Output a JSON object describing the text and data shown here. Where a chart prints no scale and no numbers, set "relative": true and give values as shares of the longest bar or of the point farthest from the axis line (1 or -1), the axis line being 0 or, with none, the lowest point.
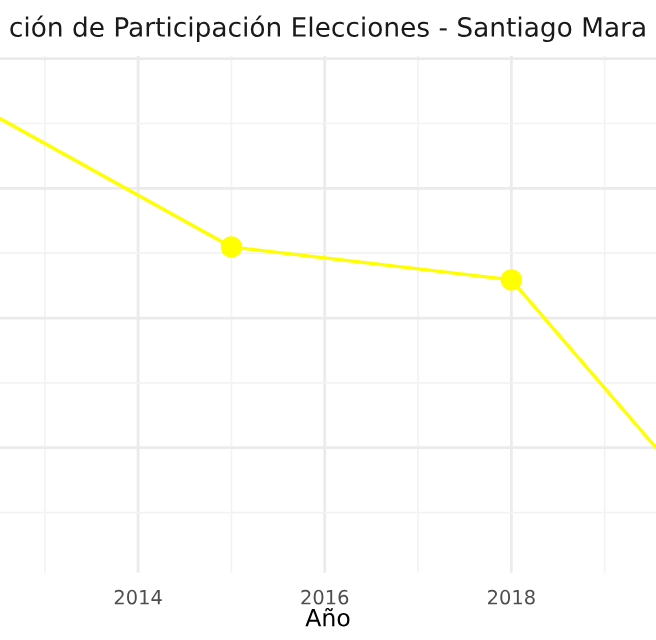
{
  "chart_data": {
    "type": "line",
    "title": "ción de Participación Elecciones - Santiago Mara",
    "xlabel": "Año",
    "relative": true,
    "xlim": [
      2012.52,
      2019.55
    ],
    "xticks": [
      2014,
      2016,
      2018
    ],
    "tick_labels": "x",
    "grid": true,
    "series": [
      {
        "color": "#ffff00",
        "marker": "none",
        "x": [
          2012.52,
          2015,
          2018,
          2019.55
        ],
        "values": [
          1,
          0.61,
          0.51,
          0
        ]
      },
      {
        "type": "scatter",
        "color": "#ffff00",
        "marker": "circle",
        "x": [
          2015,
          2018
        ],
        "values": [
          0.61,
          0.51
        ]
      }
    ]
  }
}
